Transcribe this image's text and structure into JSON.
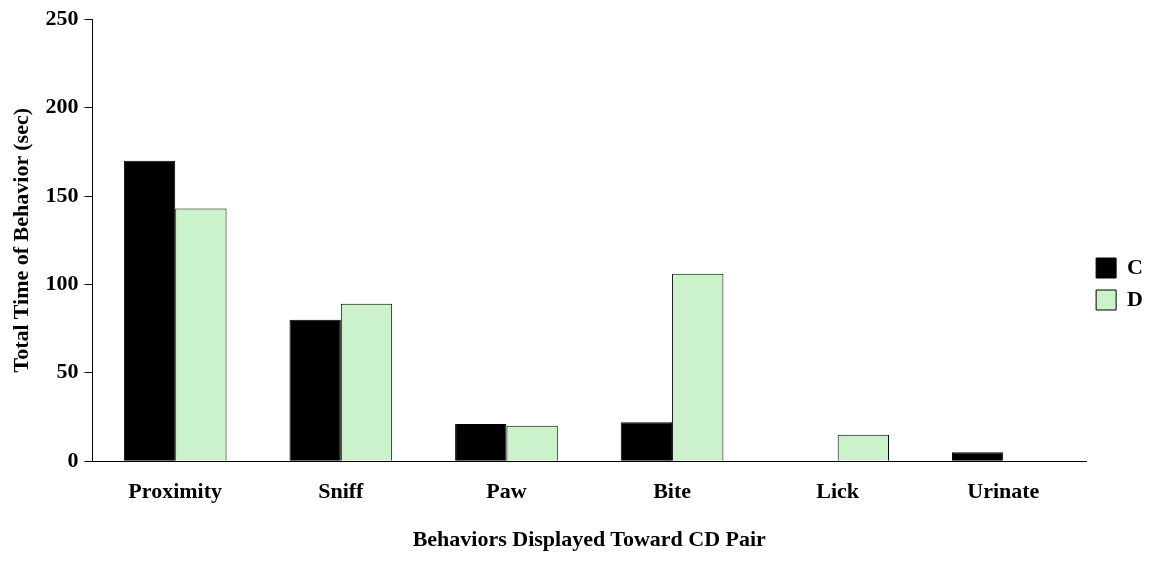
{
  "chart_data": {
    "type": "bar",
    "xlabel": "Behaviors Displayed Toward CD Pair",
    "ylabel": "Total Time of Behavior (sec)",
    "categories": [
      "Proximity",
      "Sniff",
      "Paw",
      "Bite",
      "Lick",
      "Urinate"
    ],
    "series": [
      {
        "name": "C",
        "color": "#000000",
        "values": [
          170,
          80,
          21,
          22,
          0,
          5
        ]
      },
      {
        "name": "D",
        "color": "#ccf2cc",
        "values": [
          143,
          89,
          20,
          106,
          15,
          0
        ]
      }
    ],
    "ylim": [
      0,
      250
    ],
    "yticks": [
      0,
      50,
      100,
      150,
      200,
      250
    ],
    "grid": false,
    "legend": "right"
  }
}
